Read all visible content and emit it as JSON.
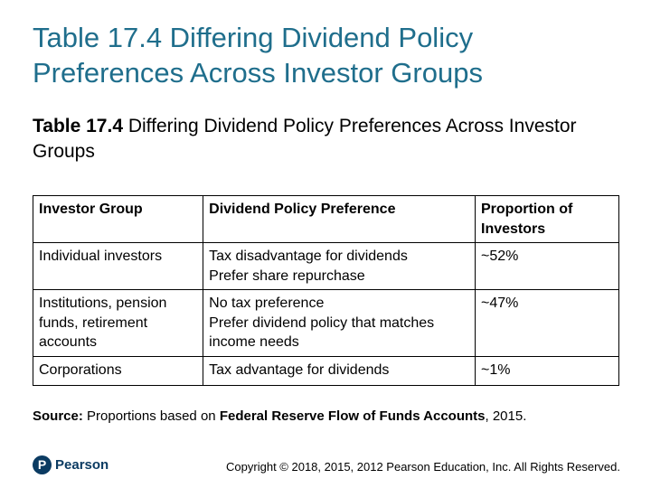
{
  "slide": {
    "title": "Table 17.4 Differing Dividend Policy Preferences Across Investor Groups",
    "subtitle_label": "Table 17.4",
    "subtitle_text": "Differing Dividend Policy Preferences Across Investor Groups"
  },
  "table": {
    "headers": [
      "Investor Group",
      "Dividend Policy Preference",
      "Proportion of Investors"
    ],
    "rows": [
      {
        "group": "Individual investors",
        "preference": [
          "Tax disadvantage for dividends",
          "Prefer share repurchase"
        ],
        "proportion": "~52%"
      },
      {
        "group": "Institutions, pension funds, retirement accounts",
        "preference": [
          "No tax preference",
          "Prefer dividend policy that matches income needs"
        ],
        "proportion": "~47%"
      },
      {
        "group": "Corporations",
        "preference": [
          "Tax advantage for dividends"
        ],
        "proportion": "~1%"
      }
    ]
  },
  "source": {
    "label": "Source:",
    "text_before": "Proportions based on",
    "bold_name": "Federal Reserve Flow of Funds Accounts",
    "text_after": ", 2015."
  },
  "footer": {
    "logo_letter": "P",
    "logo_text": "Pearson",
    "copyright": "Copyright © 2018, 2015, 2012 Pearson Education, Inc. All Rights Reserved."
  },
  "colors": {
    "title": "#1f6e8c",
    "logo": "#0b3b62"
  }
}
